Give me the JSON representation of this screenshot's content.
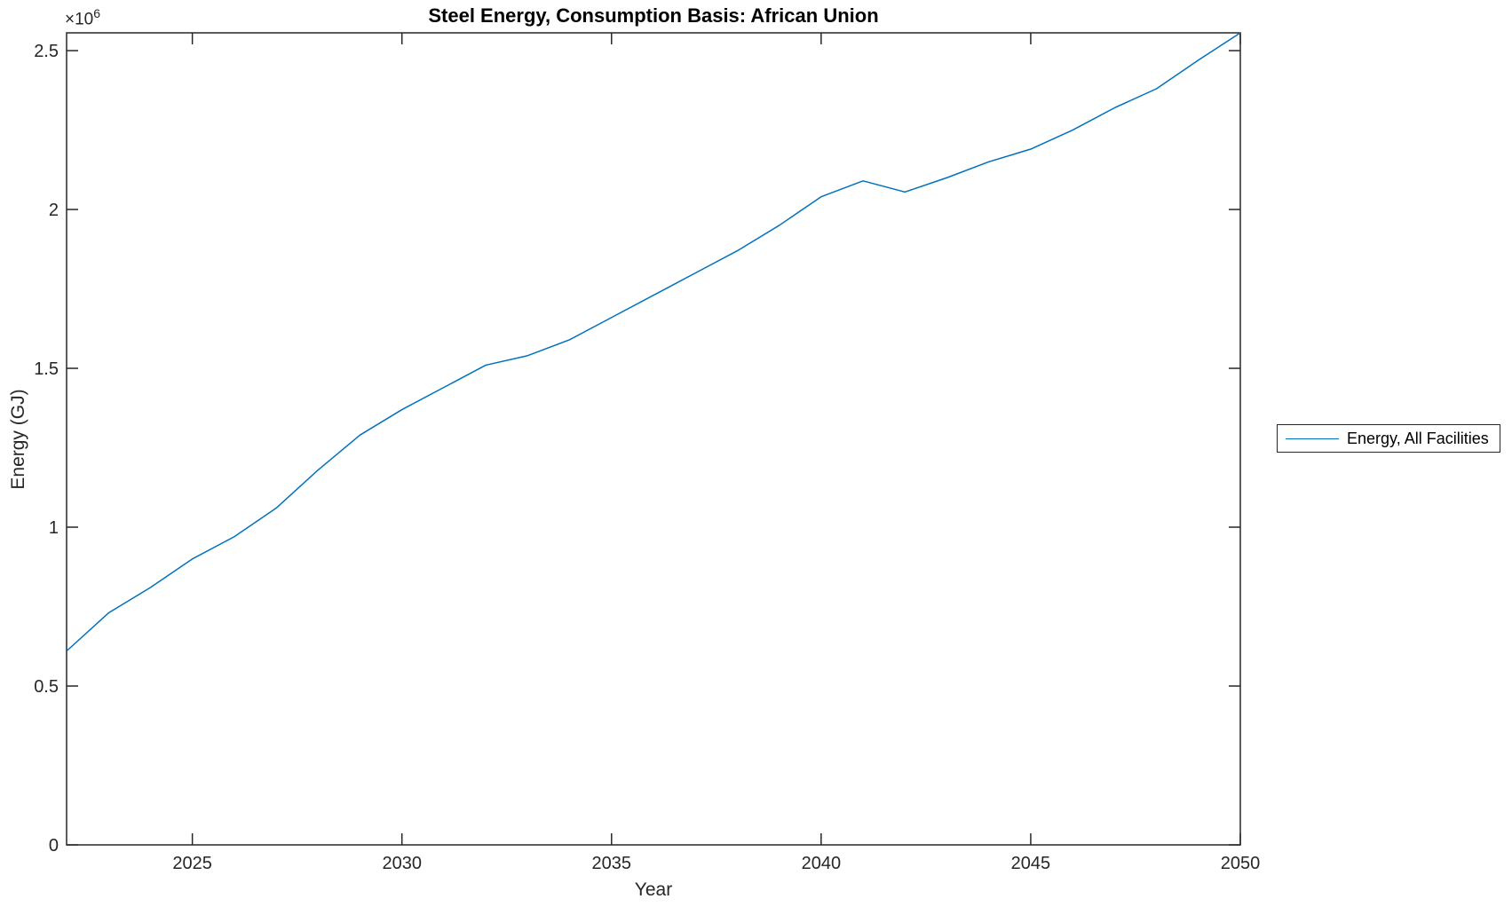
{
  "title": "Steel Energy, Consumption Basis: African Union",
  "colors": {
    "line": "#0072BD",
    "axis": "#262626",
    "tick_text": "#262626",
    "title_text": "#000000",
    "background": "#ffffff"
  },
  "y_axis_multiplier": {
    "base": "×10",
    "exponent": "6"
  },
  "chart_data": {
    "type": "line",
    "title": "Steel Energy, Consumption Basis: African Union",
    "xlabel": "Year",
    "ylabel": "Energy (GJ)",
    "grid": false,
    "xlim": [
      2022,
      2050
    ],
    "ylim": [
      0,
      2556000
    ],
    "xticks": {
      "values": [
        2025,
        2030,
        2035,
        2040,
        2045,
        2050
      ],
      "labels": [
        "2025",
        "2030",
        "2035",
        "2040",
        "2045",
        "2050"
      ]
    },
    "yticks": {
      "values": [
        0,
        500000,
        1000000,
        1500000,
        2000000,
        2500000
      ],
      "labels": [
        "0",
        "0.5",
        "1",
        "1.5",
        "2",
        "2.5"
      ],
      "multiplier": "1e6"
    },
    "legend": {
      "position": "right-outside",
      "entries": [
        {
          "label": "Energy, All Facilities",
          "color": "#0072BD"
        }
      ]
    },
    "series": [
      {
        "name": "Energy, All Facilities",
        "color": "#0072BD",
        "x": [
          2022,
          2023,
          2024,
          2025,
          2026,
          2027,
          2028,
          2029,
          2030,
          2031,
          2032,
          2033,
          2034,
          2035,
          2036,
          2037,
          2038,
          2039,
          2040,
          2041,
          2042,
          2043,
          2044,
          2045,
          2046,
          2047,
          2048,
          2049,
          2050
        ],
        "y": [
          610000,
          730000,
          810000,
          900000,
          970000,
          1060000,
          1180000,
          1290000,
          1370000,
          1440000,
          1510000,
          1540000,
          1590000,
          1660000,
          1730000,
          1800000,
          1870000,
          1950000,
          2040000,
          2090000,
          2055000,
          2100000,
          2150000,
          2190000,
          2250000,
          2320000,
          2380000,
          2470000,
          2556000
        ]
      }
    ]
  }
}
